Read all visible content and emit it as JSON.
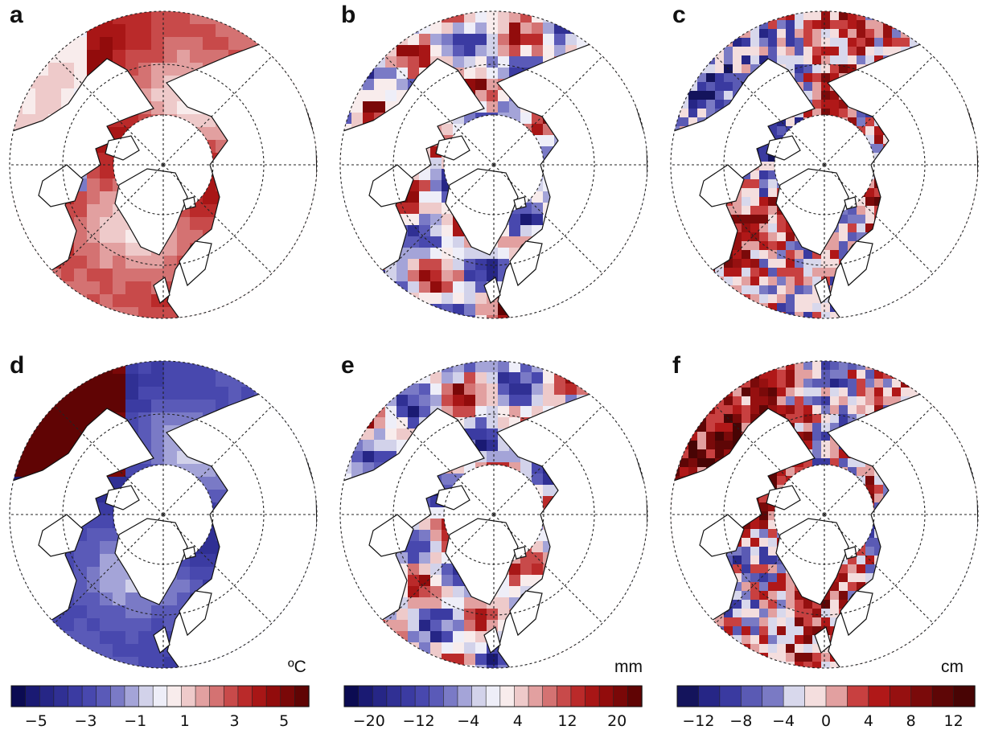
{
  "panels": [
    {
      "id": "a",
      "label": "a",
      "scheme": "temperature",
      "sign": 1,
      "texture": "smooth",
      "unit": ""
    },
    {
      "id": "b",
      "label": "b",
      "scheme": "precip",
      "sign": 1,
      "texture": "mixed",
      "unit": ""
    },
    {
      "id": "c",
      "label": "c",
      "scheme": "snow",
      "sign": 1,
      "texture": "noisy",
      "unit": ""
    },
    {
      "id": "d",
      "label": "d",
      "scheme": "temperature",
      "sign": -1,
      "texture": "smooth",
      "unit": "ºC"
    },
    {
      "id": "e",
      "label": "e",
      "scheme": "precip",
      "sign": -1,
      "texture": "mixed",
      "unit": "mm"
    },
    {
      "id": "f",
      "label": "f",
      "scheme": "snow",
      "sign": -1,
      "texture": "noisy",
      "unit": "cm"
    }
  ],
  "colorbars": [
    {
      "id": "temperature",
      "unit": "ºC",
      "ticks": [
        "−5",
        "−3",
        "−1",
        "1",
        "3",
        "5"
      ],
      "tick_values": [
        -5,
        -3,
        -1,
        1,
        3,
        5
      ],
      "range": [
        -6,
        6
      ],
      "colors": [
        "#0b0b52",
        "#1a1a73",
        "#262686",
        "#303094",
        "#3b3ba2",
        "#4848ae",
        "#5a5ab8",
        "#7a7ac6",
        "#a4a4d8",
        "#d2d2ea",
        "#eeeef8",
        "#f8ecec",
        "#eecaca",
        "#e2a0a0",
        "#d47272",
        "#c84a4a",
        "#ba2a2a",
        "#a81616",
        "#920c0c",
        "#7a0808",
        "#600404"
      ]
    },
    {
      "id": "precip",
      "unit": "mm",
      "ticks": [
        "−20",
        "−12",
        "−4",
        "4",
        "12",
        "20"
      ],
      "tick_values": [
        -20,
        -12,
        -4,
        4,
        12,
        20
      ],
      "range": [
        -24,
        24
      ],
      "colors": [
        "#0b0b52",
        "#1a1a73",
        "#262686",
        "#303094",
        "#3b3ba2",
        "#4848ae",
        "#5a5ab8",
        "#7a7ac6",
        "#a4a4d8",
        "#d2d2ea",
        "#eeeef8",
        "#f8ecec",
        "#eecaca",
        "#e2a0a0",
        "#d47272",
        "#c84a4a",
        "#ba2a2a",
        "#a81616",
        "#920c0c",
        "#7a0808",
        "#600404"
      ]
    },
    {
      "id": "snow",
      "unit": "cm",
      "ticks": [
        "−12",
        "−8",
        "−4",
        "0",
        "4",
        "8",
        "12"
      ],
      "tick_values": [
        -12,
        -8,
        -4,
        0,
        4,
        8,
        12
      ],
      "range": [
        -14,
        14
      ],
      "colors": [
        "#14145c",
        "#262686",
        "#3a3aa0",
        "#5a5ab4",
        "#7a7ac4",
        "#d8d8ec",
        "#f4dede",
        "#e2a0a0",
        "#c84040",
        "#b01818",
        "#961010",
        "#7a0a0a",
        "#5e0606",
        "#480404"
      ]
    }
  ]
}
